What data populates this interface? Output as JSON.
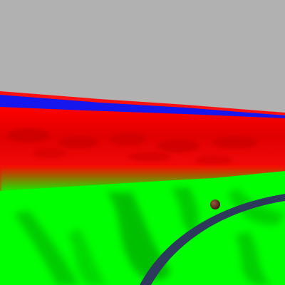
{
  "scene": {
    "type": "3d-terrain-view",
    "colors": {
      "sky": "#b1b1b1",
      "red_band": "#ff0000",
      "red_shadow": "#c80000",
      "blue_strip": "#1414f0",
      "green_terrain": "#00ff00",
      "green_shadow": "#00b400",
      "track": "#2e3a5c",
      "ball": "#5a2a20"
    },
    "objects": [
      "sky-background",
      "red-terrain-band",
      "blue-water-strip",
      "green-terrain-foreground",
      "dark-track-arc",
      "ball-marker"
    ]
  }
}
